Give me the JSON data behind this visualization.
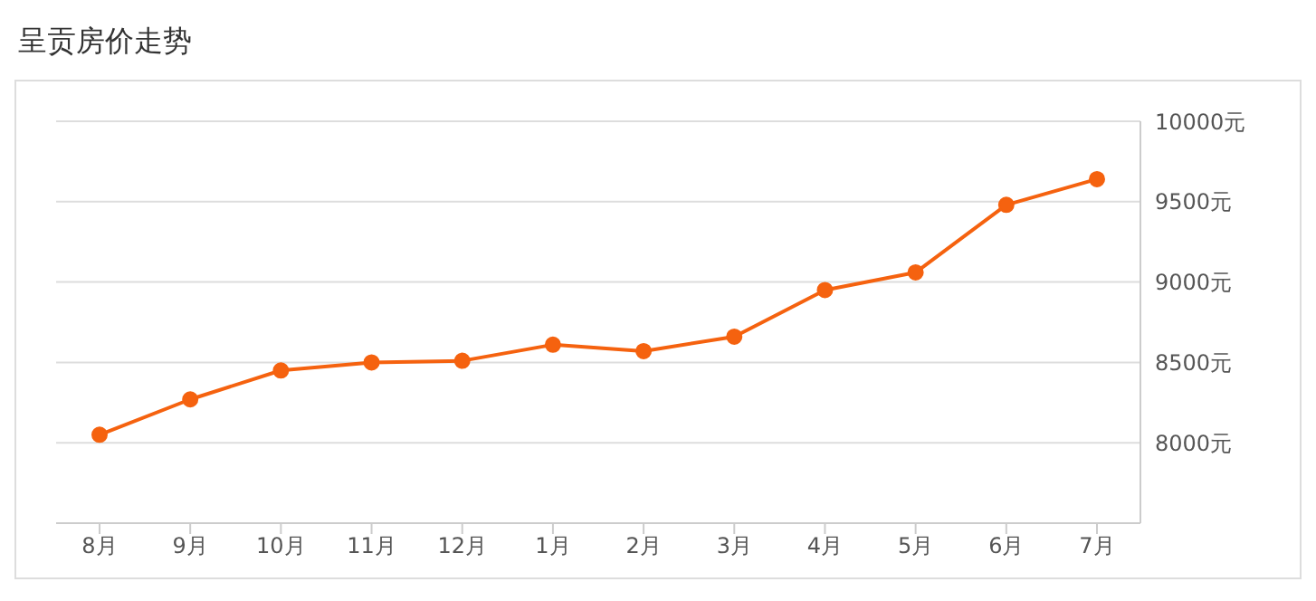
{
  "chart_data": {
    "type": "line",
    "title": "呈贡房价走势",
    "categories": [
      "8月",
      "9月",
      "10月",
      "11月",
      "12月",
      "1月",
      "2月",
      "3月",
      "4月",
      "5月",
      "6月",
      "7月"
    ],
    "series": [
      {
        "color": "#f5620f",
        "values": [
          8050,
          8270,
          8450,
          8500,
          8510,
          8610,
          8570,
          8660,
          8950,
          9060,
          9480,
          9640
        ]
      }
    ],
    "ylim": [
      7500,
      10000
    ],
    "yticks": [
      {
        "value": 8000,
        "label": "8000元"
      },
      {
        "value": 8500,
        "label": "8500元"
      },
      {
        "value": 9000,
        "label": "9000元"
      },
      {
        "value": 9500,
        "label": "9500元"
      },
      {
        "value": 10000,
        "label": "10000元"
      }
    ],
    "grid": "y",
    "marker": "circle"
  }
}
